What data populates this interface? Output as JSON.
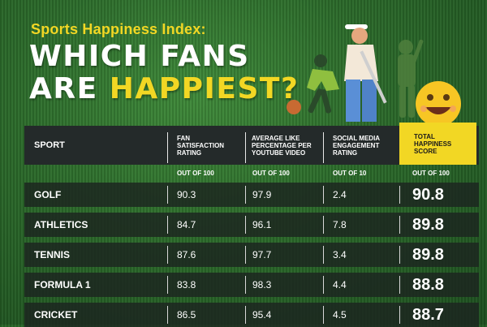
{
  "header": {
    "kicker": "Sports Happiness Index:",
    "headline_line1": "WHICH FANS",
    "headline_line2_white": "ARE ",
    "headline_line2_yellow": "HAPPIEST?"
  },
  "colors": {
    "accent_yellow": "#f2d724",
    "table_header": "#242a2a",
    "grass_green": "#2b6a2a"
  },
  "illustration": {
    "icons": [
      "golfer-icon",
      "runner-icon",
      "cricketer-icon",
      "smiley-emoji-icon"
    ]
  },
  "table": {
    "columns": {
      "sport": "SPORT",
      "fan_satisfaction": [
        "FAN",
        "SATISFACTION",
        "RATING"
      ],
      "youtube_like": [
        "AVERAGE LIKE",
        "PERCENTAGE PER",
        "YOUTUBE VIDEO"
      ],
      "social_media": [
        "SOCIAL MEDIA",
        "ENGAGEMENT",
        "RATING"
      ],
      "total": [
        "TOTAL",
        "HAPPINESS",
        "SCORE"
      ]
    },
    "units": {
      "fan_satisfaction": "OUT OF 100",
      "youtube_like": "OUT OF 100",
      "social_media": "OUT OF 10",
      "total": "OUT OF 100"
    },
    "rows": [
      {
        "sport": "GOLF",
        "fan": "90.3",
        "youtube": "97.9",
        "social": "2.4",
        "total": "90.8"
      },
      {
        "sport": "ATHLETICS",
        "fan": "84.7",
        "youtube": "96.1",
        "social": "7.8",
        "total": "89.8"
      },
      {
        "sport": "TENNIS",
        "fan": "87.6",
        "youtube": "97.7",
        "social": "3.4",
        "total": "89.8"
      },
      {
        "sport": "FORMULA 1",
        "fan": "83.8",
        "youtube": "98.3",
        "social": "4.4",
        "total": "88.8"
      },
      {
        "sport": "CRICKET",
        "fan": "86.5",
        "youtube": "95.4",
        "social": "4.5",
        "total": "88.7"
      }
    ]
  }
}
